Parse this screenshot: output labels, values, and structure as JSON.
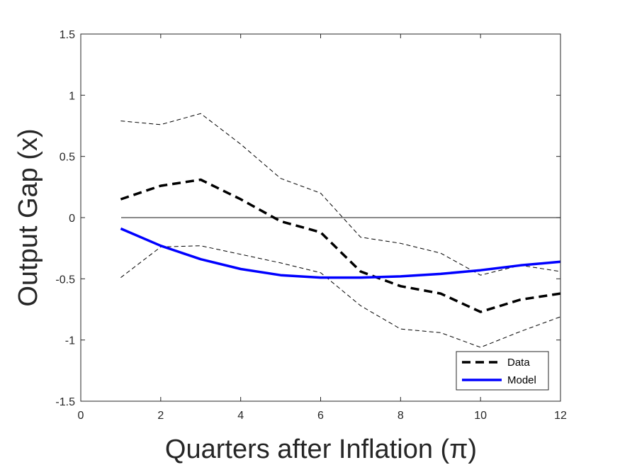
{
  "chart_data": {
    "type": "line",
    "title": "",
    "xlabel": "Quarters after Inflation (π)",
    "ylabel": "Output Gap (x)",
    "xlim": [
      0,
      12
    ],
    "ylim": [
      -1.5,
      1.5
    ],
    "xticks": [
      0,
      2,
      4,
      6,
      8,
      10,
      12
    ],
    "yticks": [
      -1.5,
      -1,
      -0.5,
      0,
      0.5,
      1,
      1.5
    ],
    "xtick_labels": [
      "0",
      "2",
      "4",
      "6",
      "8",
      "10",
      "12"
    ],
    "ytick_labels": [
      "-1.5",
      "-1",
      "-0.5",
      "0",
      "0.5",
      "1",
      "1.5"
    ],
    "x": [
      1,
      2,
      3,
      4,
      5,
      6,
      7,
      8,
      9,
      10,
      11,
      12
    ],
    "series": [
      {
        "name": "Data",
        "style": "dashed",
        "color": "#000000",
        "values": [
          0.15,
          0.26,
          0.31,
          0.15,
          -0.03,
          -0.12,
          -0.44,
          -0.56,
          -0.62,
          -0.77,
          -0.67,
          -0.62
        ]
      },
      {
        "name": "Model",
        "style": "solid",
        "color": "#0000ff",
        "values": [
          -0.09,
          -0.23,
          -0.34,
          -0.42,
          -0.47,
          -0.49,
          -0.49,
          -0.48,
          -0.46,
          -0.43,
          -0.39,
          -0.36
        ]
      },
      {
        "style": "dashed-thin",
        "color": "#000000",
        "values": [
          0.79,
          0.76,
          0.85,
          0.6,
          0.32,
          0.2,
          -0.16,
          -0.21,
          -0.29,
          -0.47,
          -0.39,
          -0.44
        ]
      },
      {
        "style": "dashed-thin",
        "color": "#000000",
        "values": [
          -0.49,
          -0.24,
          -0.23,
          -0.3,
          -0.37,
          -0.45,
          -0.72,
          -0.91,
          -0.94,
          -1.06,
          -0.93,
          -0.81
        ]
      }
    ],
    "reference_line": {
      "y": 0,
      "color": "#404040"
    },
    "legend": {
      "position": "bottom-right",
      "entries": [
        "Data",
        "Model"
      ]
    },
    "grid": false
  }
}
